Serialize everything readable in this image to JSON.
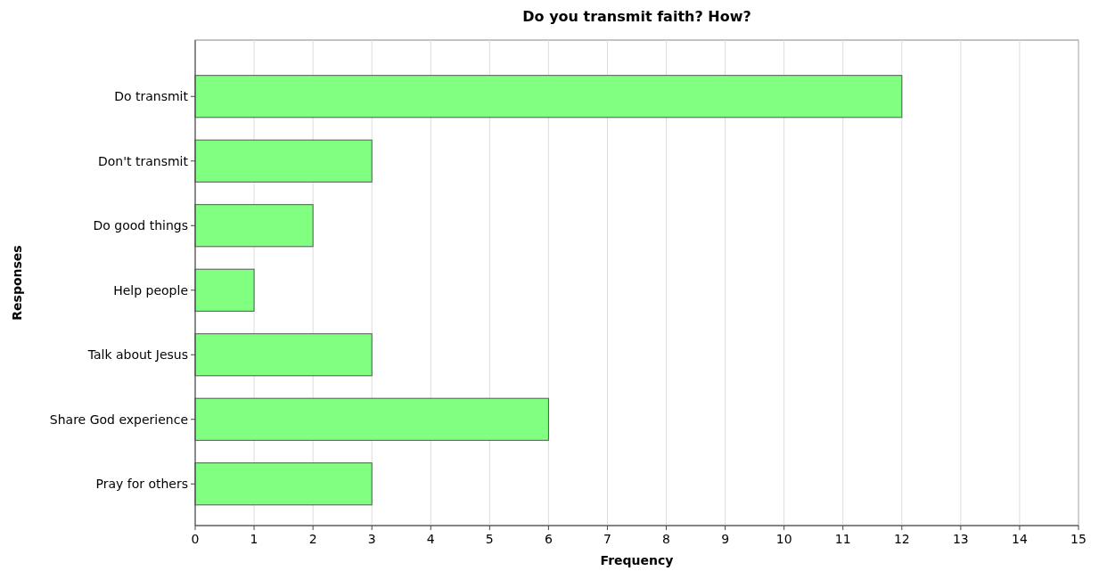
{
  "chart_data": {
    "type": "bar",
    "orientation": "horizontal",
    "title": "Do you transmit faith? How?",
    "xlabel": "Frequency",
    "ylabel": "Responses",
    "categories": [
      "Do transmit",
      "Don't transmit",
      "Do good things",
      "Help people",
      "Talk about Jesus",
      "Share God experience",
      "Pray for others"
    ],
    "values": [
      12,
      3,
      2,
      1,
      3,
      6,
      3
    ],
    "color": "#80ff80",
    "xlim": [
      0,
      15
    ],
    "xticks": [
      0,
      1,
      2,
      3,
      4,
      5,
      6,
      7,
      8,
      9,
      10,
      11,
      12,
      13,
      14,
      15
    ],
    "grid": "x"
  }
}
